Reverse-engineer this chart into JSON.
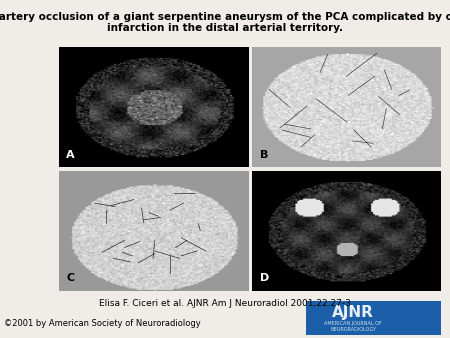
{
  "title": "Parent artery occlusion of a giant serpentine aneurysm of the PCA complicated by cerebral\ninfarction in the distal arterial territory.",
  "citation": "Elisa F. Ciceri et al. AJNR Am J Neuroradiol 2001;22:27-3",
  "copyright": "©2001 by American Society of Neuroradiology",
  "labels": [
    "A",
    "B",
    "C",
    "D"
  ],
  "background_color": "#f0ece8",
  "title_fontsize": 7.5,
  "citation_fontsize": 6.5,
  "copyright_fontsize": 6,
  "panel_bg_A": "#1a1a1a",
  "panel_bg_B": "#d8d8d8",
  "panel_bg_C": "#c8c8c8",
  "panel_bg_D": "#2a2a2a",
  "ajnr_blue": "#1a5fa8",
  "ajnr_text": "#1a5fa8",
  "figure_width": 4.5,
  "figure_height": 3.38
}
